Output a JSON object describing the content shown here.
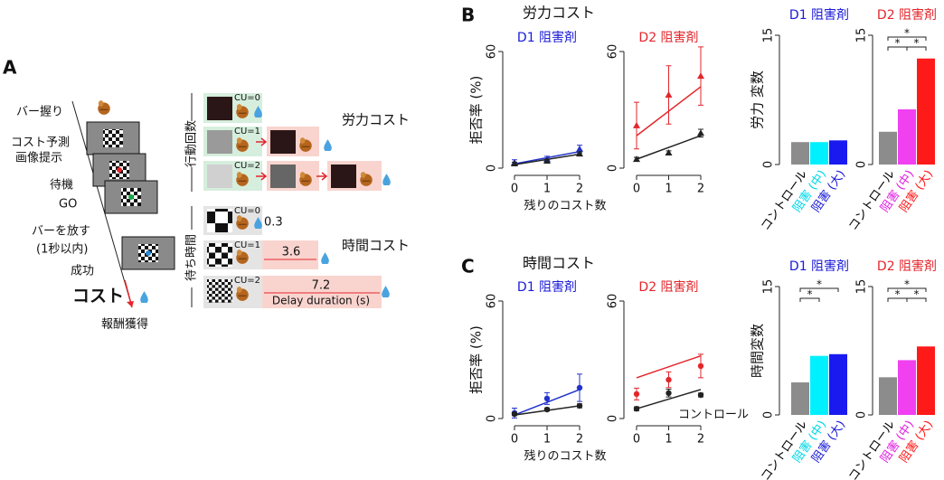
{
  "panel_labels": [
    "A",
    "B",
    "C"
  ],
  "section_titles": [
    "労力コスト",
    "時間コスト"
  ],
  "panel_a": {
    "steps": [
      "バー握り",
      "コスト予測",
      "画像提示",
      "待機",
      "GO",
      "バーを放す",
      "(1秒以内)",
      "成功"
    ],
    "cost": "コスト",
    "reward": "報酬獲得",
    "cu_labels": [
      "CU=0",
      "CU=1",
      "CU=2",
      "CU=0",
      "CU=1",
      "CU=2"
    ],
    "effort_axis": "行動回数",
    "delay_axis": "待ち時間",
    "effort_title": "労力コスト",
    "delay_title": "時間コスト",
    "delays": [
      0.3,
      3.6,
      7.2
    ],
    "delay_axis_label": "Delay duration (s)"
  },
  "chart_data": [
    {
      "type": "line",
      "title": "D1 阻害剤",
      "title_color": "#1a1ad8",
      "ylabel": "拒否率 (%)",
      "xlabel": "残りのコスト数",
      "marker": "triangle",
      "x": [
        0,
        1,
        2
      ],
      "xlim": [
        0,
        2
      ],
      "xticks": [
        0,
        1,
        2
      ],
      "ylim": [
        0,
        60
      ],
      "yticks": [
        0,
        60
      ],
      "series": [
        {
          "color": "#2233cc",
          "values": [
            2.8,
            4.6,
            9.8
          ],
          "errors": [
            1.5,
            1.5,
            2
          ],
          "fit": [
            2.2,
            8.5
          ]
        },
        {
          "color": "#222222",
          "values": [
            2.3,
            3.7,
            7.4
          ],
          "errors": [
            0.8,
            0.8,
            1
          ],
          "fit": [
            1.8,
            7.2
          ]
        }
      ]
    },
    {
      "type": "line",
      "title": "D2 阻害剤",
      "title_color": "#e3262c",
      "marker": "triangle",
      "x": [
        0,
        1,
        2
      ],
      "xlim": [
        0,
        2
      ],
      "xticks": [
        0,
        1,
        2
      ],
      "ylim": [
        0,
        60
      ],
      "yticks": [
        0,
        60
      ],
      "series": [
        {
          "color": "#e3262c",
          "values": [
            21.9,
            37.7,
            47.4
          ],
          "errors": [
            12,
            15,
            15
          ],
          "fit": [
            16.7,
            41.9
          ]
        },
        {
          "color": "#222222",
          "values": [
            4.6,
            7.9,
            18
          ],
          "errors": [
            1,
            1,
            2
          ],
          "fit": [
            4.6,
            16.7
          ]
        }
      ]
    },
    {
      "type": "bar",
      "title": "D1 阻害剤",
      "title_color": "#1a1ad8",
      "ylabel": "労力 変数",
      "categories": [
        "コントロール",
        "阻害 (中)",
        "阻害 (大)"
      ],
      "category_colors": [
        "#000000",
        "#00d8e8",
        "#1a1ad8"
      ],
      "values": [
        2.6,
        2.6,
        2.8
      ],
      "colors": [
        "#8c8c8c",
        "#00f0ff",
        "#1a1af0"
      ],
      "ylim": [
        0,
        15
      ],
      "yticks": [
        0,
        15
      ]
    },
    {
      "type": "bar",
      "title": "D2 阻害剤",
      "title_color": "#e3262c",
      "categories": [
        "コントロール",
        "阻害 (中)",
        "阻害 (大)"
      ],
      "category_colors": [
        "#000000",
        "#e020e0",
        "#ff1a1a"
      ],
      "values": [
        3.8,
        6.4,
        12.3
      ],
      "colors": [
        "#8c8c8c",
        "#f040f0",
        "#ff1a1a"
      ],
      "ylim": [
        0,
        15
      ],
      "yticks": [
        0,
        15
      ],
      "significance": [
        {
          "pair": [
            0,
            2
          ],
          "label": "*"
        },
        {
          "pair": [
            0,
            1
          ],
          "label": "*"
        },
        {
          "pair": [
            1,
            2
          ],
          "label": "*"
        }
      ]
    },
    {
      "type": "line",
      "title": "D1 阻害剤",
      "title_color": "#1a1ad8",
      "ylabel": "拒否率 (%)",
      "xlabel": "残りのコスト数",
      "marker": "circle",
      "x": [
        0,
        1,
        2
      ],
      "xlim": [
        0,
        2
      ],
      "xticks": [
        0,
        1,
        2
      ],
      "ylim": [
        0,
        60
      ],
      "yticks": [
        0,
        60
      ],
      "series": [
        {
          "color": "#2233cc",
          "values": [
            2.8,
            10.2,
            15.7
          ],
          "errors": [
            2.5,
            3,
            7
          ],
          "fit": [
            1.8,
            14.8
          ]
        },
        {
          "color": "#222222",
          "values": [
            2.3,
            4.6,
            6.5
          ],
          "errors": [
            0.8,
            0.8,
            1
          ],
          "fit": [
            1.8,
            6.5
          ]
        }
      ]
    },
    {
      "type": "line",
      "title": "D2 阻害剤",
      "title_color": "#e3262c",
      "marker": "circle",
      "annotation": "コントロール",
      "x": [
        0,
        1,
        2
      ],
      "xlim": [
        0,
        2
      ],
      "xticks": [
        0,
        1,
        2
      ],
      "ylim": [
        0,
        60
      ],
      "yticks": [
        0,
        60
      ],
      "series": [
        {
          "color": "#e3262c",
          "values": [
            12.5,
            19.8,
            26.8
          ],
          "errors": [
            3,
            4,
            6
          ],
          "fit": [
            20.8,
            32
          ]
        },
        {
          "color": "#222222",
          "values": [
            5,
            13,
            12
          ],
          "errors": [
            1,
            2,
            1
          ],
          "fit": [
            5,
            14.8
          ]
        }
      ]
    },
    {
      "type": "bar",
      "title": "D1 阻害剤",
      "title_color": "#1a1ad8",
      "ylabel": "時間変数",
      "categories": [
        "コントロール",
        "阻害 (中)",
        "阻害 (大)"
      ],
      "category_colors": [
        "#000000",
        "#00d8e8",
        "#1a1ad8"
      ],
      "values": [
        3.8,
        6.9,
        7.1
      ],
      "colors": [
        "#8c8c8c",
        "#00f0ff",
        "#1a1af0"
      ],
      "ylim": [
        0,
        15
      ],
      "yticks": [
        0,
        15
      ],
      "significance": [
        {
          "pair": [
            0,
            2
          ],
          "label": "*"
        },
        {
          "pair": [
            0,
            1
          ],
          "label": "*"
        }
      ]
    },
    {
      "type": "bar",
      "title": "D2 阻害剤",
      "title_color": "#e3262c",
      "categories": [
        "コントロール",
        "阻害 (中)",
        "阻害 (大)"
      ],
      "category_colors": [
        "#000000",
        "#e020e0",
        "#ff1a1a"
      ],
      "values": [
        4.4,
        6.4,
        8.0
      ],
      "colors": [
        "#8c8c8c",
        "#f040f0",
        "#ff1a1a"
      ],
      "ylim": [
        0,
        15
      ],
      "yticks": [
        0,
        15
      ],
      "significance": [
        {
          "pair": [
            0,
            2
          ],
          "label": "*"
        },
        {
          "pair": [
            0,
            1
          ],
          "label": "*"
        },
        {
          "pair": [
            1,
            2
          ],
          "label": "*"
        }
      ]
    }
  ]
}
